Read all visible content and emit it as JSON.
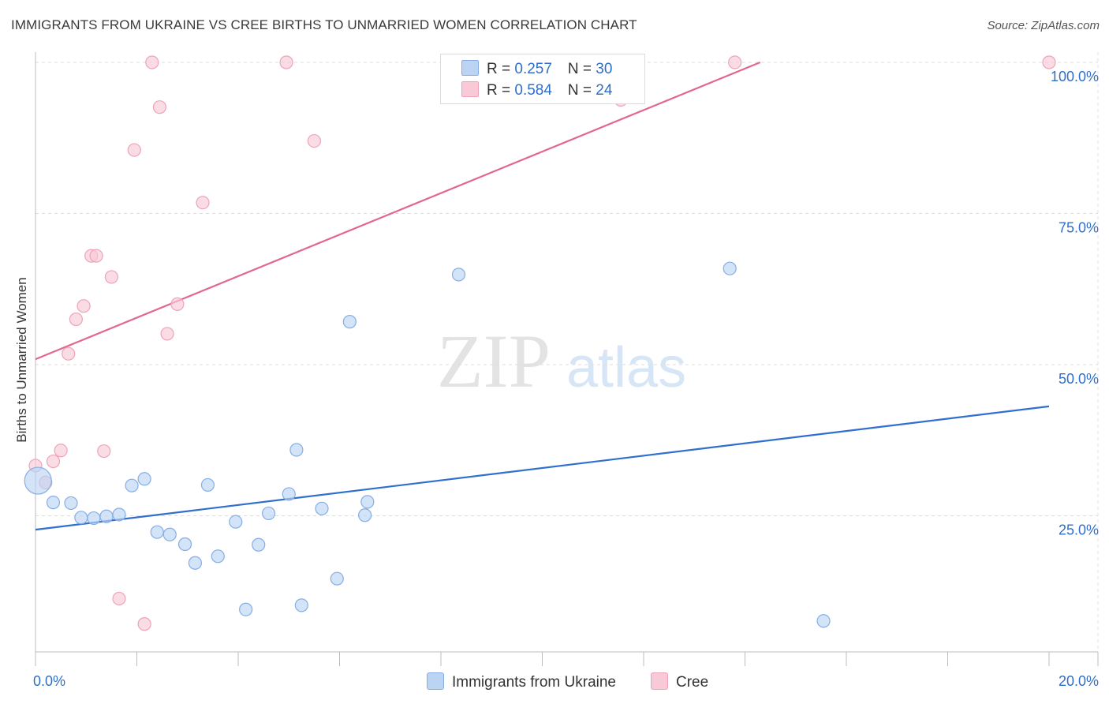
{
  "title": "IMMIGRANTS FROM UKRAINE VS CREE BIRTHS TO UNMARRIED WOMEN CORRELATION CHART",
  "source": "Source: ZipAtlas.com",
  "watermark": {
    "zip": "ZIP",
    "atlas": "atlas"
  },
  "legend_stats": [
    {
      "r_label": "R = ",
      "r_value": "0.257",
      "n_label": "N = ",
      "n_value": "30"
    },
    {
      "r_label": "R = ",
      "r_value": "0.584",
      "n_label": "N = ",
      "n_value": "24"
    }
  ],
  "bottom_legend": [
    {
      "label": "Immigrants from Ukraine"
    },
    {
      "label": "Cree"
    }
  ],
  "colors": {
    "ukraine_fill": "#bcd4f4",
    "ukraine_stroke": "#86aee3",
    "ukraine_line": "#2f6fcf",
    "cree_fill": "#f8c9d6",
    "cree_stroke": "#eea3b9",
    "cree_line": "#e2678f",
    "tick_label": "#2f6fc9",
    "grid": "#dddddd"
  },
  "chart_data": {
    "type": "scatter",
    "xlabel": "",
    "ylabel": "Births to Unmarried Women",
    "xlim": [
      0,
      20
    ],
    "ylim": [
      0,
      100
    ],
    "x_tick_labels": [
      {
        "value": 0,
        "label": "0.0%"
      },
      {
        "value": 20,
        "label": "20.0%"
      }
    ],
    "y_tick_labels": [
      {
        "value": 25,
        "label": "25.0%"
      },
      {
        "value": 50,
        "label": "50.0%"
      },
      {
        "value": 75,
        "label": "75.0%"
      },
      {
        "value": 100,
        "label": "100.0%"
      }
    ],
    "grid": true,
    "series": [
      {
        "name": "Immigrants from Ukraine",
        "r": 0.257,
        "n": 30,
        "trend": {
          "x": [
            0,
            20
          ],
          "y": [
            22.7,
            43.1
          ]
        },
        "points": [
          {
            "x": 0.05,
            "y": 30.8,
            "big": true
          },
          {
            "x": 0.35,
            "y": 27.2
          },
          {
            "x": 0.7,
            "y": 27.1
          },
          {
            "x": 0.9,
            "y": 24.7
          },
          {
            "x": 1.15,
            "y": 24.6
          },
          {
            "x": 1.4,
            "y": 24.9
          },
          {
            "x": 1.65,
            "y": 25.2
          },
          {
            "x": 1.9,
            "y": 30.0
          },
          {
            "x": 2.15,
            "y": 31.1
          },
          {
            "x": 2.4,
            "y": 22.3
          },
          {
            "x": 2.65,
            "y": 21.9
          },
          {
            "x": 2.95,
            "y": 20.3
          },
          {
            "x": 3.15,
            "y": 17.2
          },
          {
            "x": 3.4,
            "y": 30.1
          },
          {
            "x": 3.6,
            "y": 18.3
          },
          {
            "x": 3.95,
            "y": 24.0
          },
          {
            "x": 4.15,
            "y": 9.5
          },
          {
            "x": 4.4,
            "y": 20.2
          },
          {
            "x": 4.6,
            "y": 25.4
          },
          {
            "x": 5.0,
            "y": 28.6
          },
          {
            "x": 5.15,
            "y": 35.9
          },
          {
            "x": 5.25,
            "y": 10.2
          },
          {
            "x": 5.65,
            "y": 26.2
          },
          {
            "x": 5.95,
            "y": 14.6
          },
          {
            "x": 6.2,
            "y": 57.1
          },
          {
            "x": 6.5,
            "y": 25.1
          },
          {
            "x": 6.55,
            "y": 27.3
          },
          {
            "x": 8.35,
            "y": 64.9
          },
          {
            "x": 13.7,
            "y": 65.9
          },
          {
            "x": 15.55,
            "y": 7.6
          }
        ]
      },
      {
        "name": "Cree",
        "r": 0.584,
        "n": 24,
        "trend": {
          "x": [
            0,
            14.3
          ],
          "y": [
            50.9,
            100
          ]
        },
        "points": [
          {
            "x": 0.0,
            "y": 33.3
          },
          {
            "x": 0.2,
            "y": 30.5
          },
          {
            "x": 0.35,
            "y": 34.0
          },
          {
            "x": 0.5,
            "y": 35.8
          },
          {
            "x": 0.65,
            "y": 51.8
          },
          {
            "x": 0.8,
            "y": 57.5
          },
          {
            "x": 0.95,
            "y": 59.7
          },
          {
            "x": 1.1,
            "y": 68.0
          },
          {
            "x": 1.2,
            "y": 68.0
          },
          {
            "x": 1.35,
            "y": 35.7
          },
          {
            "x": 1.5,
            "y": 64.5
          },
          {
            "x": 1.65,
            "y": 11.3
          },
          {
            "x": 1.95,
            "y": 85.5
          },
          {
            "x": 2.15,
            "y": 7.1
          },
          {
            "x": 2.3,
            "y": 100.0
          },
          {
            "x": 2.45,
            "y": 92.6
          },
          {
            "x": 2.6,
            "y": 55.1
          },
          {
            "x": 2.8,
            "y": 60.0
          },
          {
            "x": 3.3,
            "y": 76.8
          },
          {
            "x": 4.95,
            "y": 100.0
          },
          {
            "x": 5.5,
            "y": 87.0
          },
          {
            "x": 11.55,
            "y": 93.8
          },
          {
            "x": 13.8,
            "y": 100.0
          },
          {
            "x": 20.0,
            "y": 100.0
          }
        ]
      }
    ]
  }
}
